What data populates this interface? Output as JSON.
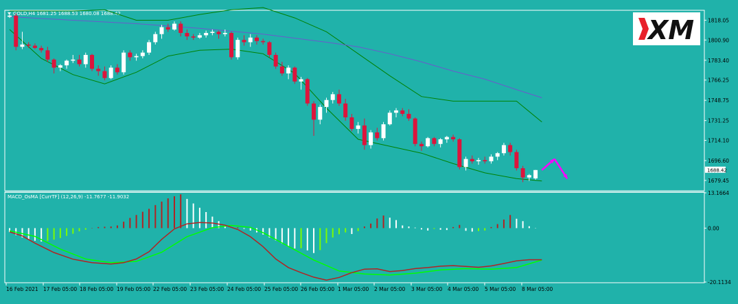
{
  "colors": {
    "background": "#20b2aa",
    "frame": "#ffffff",
    "bull_candle": "#ffffff",
    "bear_candle": "#dc143c",
    "bollinger": "#008000",
    "moving_average": "#6a5acd",
    "macd_line": "#b22222",
    "signal_line": "#00ff00",
    "hist_up_rising": "#b22222",
    "hist_up_falling": "#ffffff",
    "hist_down_falling": "#ffffff",
    "hist_down_rising": "#7cfc00",
    "forecast_arrow": "#ff00ff"
  },
  "price_panel": {
    "title": "GOLD,H4  1681.25 1688.53 1680.08 1688.42",
    "current_price_label": "1688.42",
    "logo": "XM"
  },
  "macd_panel": {
    "title": "MACD_OsMA [CurrTF] (12,26,9) -11.7677 -11.9032"
  },
  "chart_data": [
    {
      "type": "candlestick",
      "symbol": "GOLD",
      "timeframe": "H4",
      "ohlc_header": {
        "open": 1681.25,
        "high": 1688.53,
        "low": 1680.08,
        "close": 1688.42
      },
      "y_ticks": [
        "1818.05",
        "1800.90",
        "1783.40",
        "1766.25",
        "1748.75",
        "1731.25",
        "1714.10",
        "1696.60",
        "1679.45"
      ],
      "ylim": [
        1670.5,
        1826.6
      ],
      "x_tick_labels": [
        "16 Feb 2021",
        "17 Feb 05:00",
        "18 Feb 05:00",
        "19 Feb 05:00",
        "22 Feb 05:00",
        "23 Feb 05:00",
        "24 Feb 05:00",
        "25 Feb 05:00",
        "26 Feb 05:00",
        "1 Mar 05:00",
        "2 Mar 05:00",
        "3 Mar 05:00",
        "4 Mar 05:00",
        "5 Mar 05:00",
        "8 Mar 05:00"
      ],
      "candles": [
        [
          1821,
          1823,
          1820,
          1822
        ],
        [
          1822,
          1824,
          1792,
          1795
        ],
        [
          1795,
          1808,
          1793,
          1797
        ],
        [
          1797,
          1799,
          1794,
          1796
        ],
        [
          1796,
          1798,
          1793,
          1794
        ],
        [
          1794,
          1796,
          1790,
          1792
        ],
        [
          1792,
          1795,
          1782,
          1784
        ],
        [
          1784,
          1785,
          1772,
          1777
        ],
        [
          1777,
          1780,
          1774,
          1779
        ],
        [
          1779,
          1784,
          1776,
          1783
        ],
        [
          1783,
          1788,
          1781,
          1784
        ],
        [
          1784,
          1788,
          1778,
          1780
        ],
        [
          1780,
          1790,
          1777,
          1788
        ],
        [
          1788,
          1789,
          1774,
          1776
        ],
        [
          1776,
          1779,
          1770,
          1774
        ],
        [
          1774,
          1778,
          1766,
          1768
        ],
        [
          1768,
          1779,
          1767,
          1777
        ],
        [
          1777,
          1780,
          1771,
          1773
        ],
        [
          1773,
          1792,
          1771,
          1790
        ],
        [
          1790,
          1792,
          1783,
          1786
        ],
        [
          1786,
          1789,
          1783,
          1787
        ],
        [
          1787,
          1792,
          1785,
          1790
        ],
        [
          1790,
          1801,
          1788,
          1799
        ],
        [
          1799,
          1808,
          1797,
          1806
        ],
        [
          1806,
          1814,
          1802,
          1812
        ],
        [
          1812,
          1815,
          1808,
          1810
        ],
        [
          1810,
          1817,
          1809,
          1815
        ],
        [
          1815,
          1817,
          1804,
          1807
        ],
        [
          1807,
          1810,
          1801,
          1804
        ],
        [
          1804,
          1806,
          1801,
          1803
        ],
        [
          1803,
          1807,
          1802,
          1805
        ],
        [
          1805,
          1809,
          1803,
          1807
        ],
        [
          1807,
          1810,
          1805,
          1808
        ],
        [
          1808,
          1809,
          1802,
          1806
        ],
        [
          1806,
          1810,
          1804,
          1807
        ],
        [
          1807,
          1808,
          1784,
          1786
        ],
        [
          1786,
          1803,
          1784,
          1801
        ],
        [
          1801,
          1805,
          1796,
          1799
        ],
        [
          1799,
          1806,
          1795,
          1803
        ],
        [
          1803,
          1805,
          1797,
          1800
        ],
        [
          1800,
          1802,
          1797,
          1799
        ],
        [
          1799,
          1800,
          1786,
          1788
        ],
        [
          1788,
          1790,
          1776,
          1778
        ],
        [
          1778,
          1782,
          1770,
          1772
        ],
        [
          1772,
          1779,
          1767,
          1777
        ],
        [
          1777,
          1778,
          1763,
          1765
        ],
        [
          1765,
          1769,
          1758,
          1767
        ],
        [
          1767,
          1768,
          1744,
          1746
        ],
        [
          1746,
          1748,
          1718,
          1732
        ],
        [
          1732,
          1745,
          1728,
          1743
        ],
        [
          1743,
          1751,
          1738,
          1749
        ],
        [
          1749,
          1756,
          1746,
          1754
        ],
        [
          1754,
          1758,
          1744,
          1746
        ],
        [
          1746,
          1750,
          1731,
          1734
        ],
        [
          1734,
          1737,
          1722,
          1724
        ],
        [
          1724,
          1730,
          1720,
          1727
        ],
        [
          1727,
          1733,
          1706,
          1710
        ],
        [
          1710,
          1723,
          1707,
          1721
        ],
        [
          1721,
          1725,
          1714,
          1716
        ],
        [
          1716,
          1730,
          1714,
          1728
        ],
        [
          1728,
          1740,
          1727,
          1738
        ],
        [
          1738,
          1742,
          1734,
          1740
        ],
        [
          1740,
          1742,
          1735,
          1737
        ],
        [
          1737,
          1741,
          1731,
          1733
        ],
        [
          1733,
          1734,
          1709,
          1711
        ],
        [
          1711,
          1713,
          1705,
          1709
        ],
        [
          1709,
          1717,
          1708,
          1716
        ],
        [
          1716,
          1717,
          1709,
          1711
        ],
        [
          1711,
          1716,
          1708,
          1715
        ],
        [
          1715,
          1718,
          1712,
          1717
        ],
        [
          1717,
          1719,
          1713,
          1715
        ],
        [
          1715,
          1716,
          1689,
          1691
        ],
        [
          1691,
          1700,
          1688,
          1698
        ],
        [
          1698,
          1701,
          1694,
          1696
        ],
        [
          1696,
          1699,
          1693,
          1697
        ],
        [
          1697,
          1700,
          1694,
          1696
        ],
        [
          1696,
          1702,
          1694,
          1700
        ],
        [
          1700,
          1704,
          1697,
          1703
        ],
        [
          1703,
          1712,
          1701,
          1710
        ],
        [
          1710,
          1712,
          1701,
          1704
        ],
        [
          1704,
          1706,
          1688,
          1690
        ],
        [
          1690,
          1692,
          1678,
          1682
        ],
        [
          1682,
          1685,
          1679,
          1684
        ],
        [
          1681.25,
          1688.53,
          1680.08,
          1688.42
        ]
      ],
      "moving_average": [
        [
          0,
          1821
        ],
        [
          10,
          1818
        ],
        [
          20,
          1815
        ],
        [
          30,
          1811
        ],
        [
          40,
          1806
        ],
        [
          50,
          1799
        ],
        [
          55,
          1795
        ],
        [
          60,
          1789
        ],
        [
          65,
          1782
        ],
        [
          70,
          1774
        ],
        [
          75,
          1767
        ],
        [
          80,
          1758
        ],
        [
          84,
          1751
        ]
      ],
      "bollinger_upper": [
        [
          0,
          1826
        ],
        [
          10,
          1826
        ],
        [
          15,
          1827
        ],
        [
          20,
          1818
        ],
        [
          25,
          1818
        ],
        [
          30,
          1823
        ],
        [
          35,
          1827
        ],
        [
          40,
          1829
        ],
        [
          45,
          1820
        ],
        [
          50,
          1808
        ],
        [
          55,
          1789
        ],
        [
          60,
          1770
        ],
        [
          65,
          1752
        ],
        [
          70,
          1748
        ],
        [
          75,
          1748
        ],
        [
          80,
          1748
        ],
        [
          84,
          1730
        ]
      ],
      "bollinger_lower": [
        [
          0,
          1810
        ],
        [
          5,
          1785
        ],
        [
          10,
          1771
        ],
        [
          15,
          1763
        ],
        [
          20,
          1773
        ],
        [
          25,
          1787
        ],
        [
          30,
          1792
        ],
        [
          35,
          1793
        ],
        [
          40,
          1789
        ],
        [
          45,
          1772
        ],
        [
          50,
          1742
        ],
        [
          55,
          1715
        ],
        [
          60,
          1709
        ],
        [
          65,
          1703
        ],
        [
          70,
          1694
        ],
        [
          75,
          1686
        ],
        [
          80,
          1681
        ],
        [
          84,
          1679
        ]
      ],
      "forecast": [
        [
          84,
          1688.42
        ],
        [
          86,
          1698
        ],
        [
          88,
          1681
        ]
      ]
    },
    {
      "type": "bar+line",
      "name": "MACD_OsMA",
      "parameters": "(12,26,9)",
      "values_shown": [
        -11.7677,
        -11.9032
      ],
      "y_ticks": [
        "13.1664",
        "0.00",
        "-20.1134"
      ],
      "ylim": [
        -20.1134,
        13.1664
      ],
      "histogram": [
        -1.5,
        -2.6,
        -3.5,
        -4.2,
        -4.7,
        -5.0,
        -4.8,
        -4.3,
        -3.7,
        -2.9,
        -2.1,
        -1.2,
        -0.6,
        0.1,
        0.4,
        0.5,
        0.6,
        1.0,
        2.4,
        3.8,
        4.9,
        6.1,
        7.2,
        8.6,
        9.9,
        11.1,
        11.9,
        12.6,
        10.9,
        9.2,
        7.6,
        6.0,
        4.3,
        2.6,
        1.0,
        0.0,
        0.3,
        -0.3,
        -0.9,
        -1.6,
        -2.4,
        -3.5,
        -4.6,
        -5.8,
        -6.9,
        -7.6,
        -7.5,
        -8.3,
        -9.3,
        -8.2,
        -5.6,
        -3.5,
        -2.3,
        -1.6,
        -2.2,
        -1.1,
        0.6,
        1.7,
        3.6,
        4.7,
        3.9,
        3.0,
        1.0,
        0.6,
        0.2,
        -0.5,
        -0.9,
        -0.3,
        -0.6,
        -0.7,
        0.4,
        1.2,
        -1.0,
        -1.3,
        -1.1,
        -0.9,
        0.4,
        1.5,
        3.2,
        4.9,
        3.5,
        2.6,
        0.7,
        -0.1
      ],
      "macd_line": [
        [
          0,
          -1.4
        ],
        [
          2,
          -2.9
        ],
        [
          4,
          -5.6
        ],
        [
          7,
          -9.1
        ],
        [
          10,
          -11.6
        ],
        [
          13,
          -12.9
        ],
        [
          16,
          -13.4
        ],
        [
          18,
          -12.9
        ],
        [
          20,
          -11.5
        ],
        [
          22,
          -8.8
        ],
        [
          24,
          -4.2
        ],
        [
          26,
          -0.3
        ],
        [
          28,
          1.6
        ],
        [
          30,
          2.1
        ],
        [
          32,
          1.9
        ],
        [
          34,
          1.1
        ],
        [
          36,
          -0.5
        ],
        [
          38,
          -3.2
        ],
        [
          40,
          -6.9
        ],
        [
          42,
          -11.5
        ],
        [
          44,
          -14.7
        ],
        [
          46,
          -16.6
        ],
        [
          48,
          -18.3
        ],
        [
          50,
          -19.4
        ],
        [
          52,
          -18.4
        ],
        [
          54,
          -16.6
        ],
        [
          56,
          -15.3
        ],
        [
          58,
          -15.2
        ],
        [
          60,
          -16.2
        ],
        [
          62,
          -15.8
        ],
        [
          64,
          -15.1
        ],
        [
          66,
          -14.7
        ],
        [
          68,
          -14.2
        ],
        [
          70,
          -14.0
        ],
        [
          72,
          -14.3
        ],
        [
          74,
          -14.6
        ],
        [
          76,
          -14.1
        ],
        [
          78,
          -13.2
        ],
        [
          80,
          -12.2
        ],
        [
          82,
          -11.8
        ],
        [
          84,
          -11.8
        ]
      ],
      "signal_line": [
        [
          0,
          -1.0
        ],
        [
          4,
          -3.1
        ],
        [
          8,
          -7.8
        ],
        [
          12,
          -11.5
        ],
        [
          16,
          -12.9
        ],
        [
          20,
          -12.4
        ],
        [
          24,
          -9.0
        ],
        [
          28,
          -3.2
        ],
        [
          32,
          0.2
        ],
        [
          35,
          1.0
        ],
        [
          38,
          0.3
        ],
        [
          40,
          -1.7
        ],
        [
          44,
          -6.8
        ],
        [
          48,
          -11.9
        ],
        [
          52,
          -16.0
        ],
        [
          56,
          -17.1
        ],
        [
          60,
          -17.5
        ],
        [
          64,
          -16.8
        ],
        [
          68,
          -15.6
        ],
        [
          72,
          -15.1
        ],
        [
          76,
          -15.3
        ],
        [
          80,
          -14.7
        ],
        [
          84,
          -11.9
        ]
      ]
    }
  ]
}
